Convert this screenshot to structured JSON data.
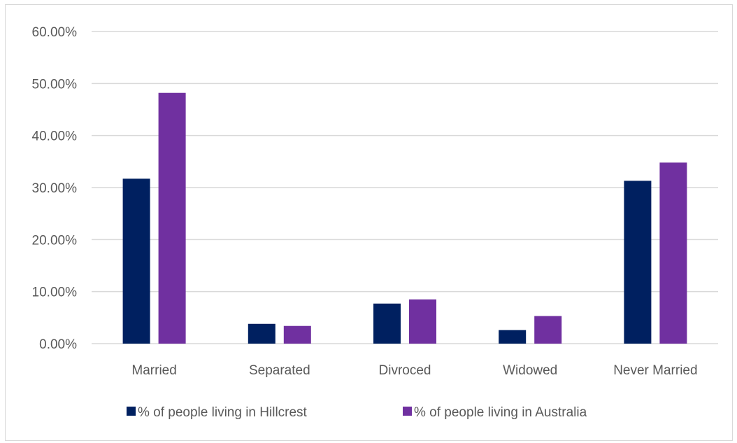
{
  "chart_data": {
    "type": "bar",
    "categories": [
      "Married",
      "Separated",
      "Divroced",
      "Widowed",
      "Never Married"
    ],
    "series": [
      {
        "name": "% of people living in Hillcrest",
        "color": "#002060",
        "values": [
          0.317,
          0.038,
          0.077,
          0.026,
          0.313
        ]
      },
      {
        "name": "% of people living in Australia",
        "color": "#7030A0",
        "values": [
          0.482,
          0.034,
          0.085,
          0.053,
          0.348
        ]
      }
    ],
    "yticks": [
      0,
      0.1,
      0.2,
      0.3,
      0.4,
      0.5,
      0.6
    ],
    "ytick_labels": [
      "0.00%",
      "10.00%",
      "20.00%",
      "30.00%",
      "40.00%",
      "50.00%",
      "60.00%"
    ],
    "ylim": [
      0,
      0.6
    ],
    "grid": true,
    "gridline_color": "#d9d9d9",
    "legend_position": "bottom"
  }
}
